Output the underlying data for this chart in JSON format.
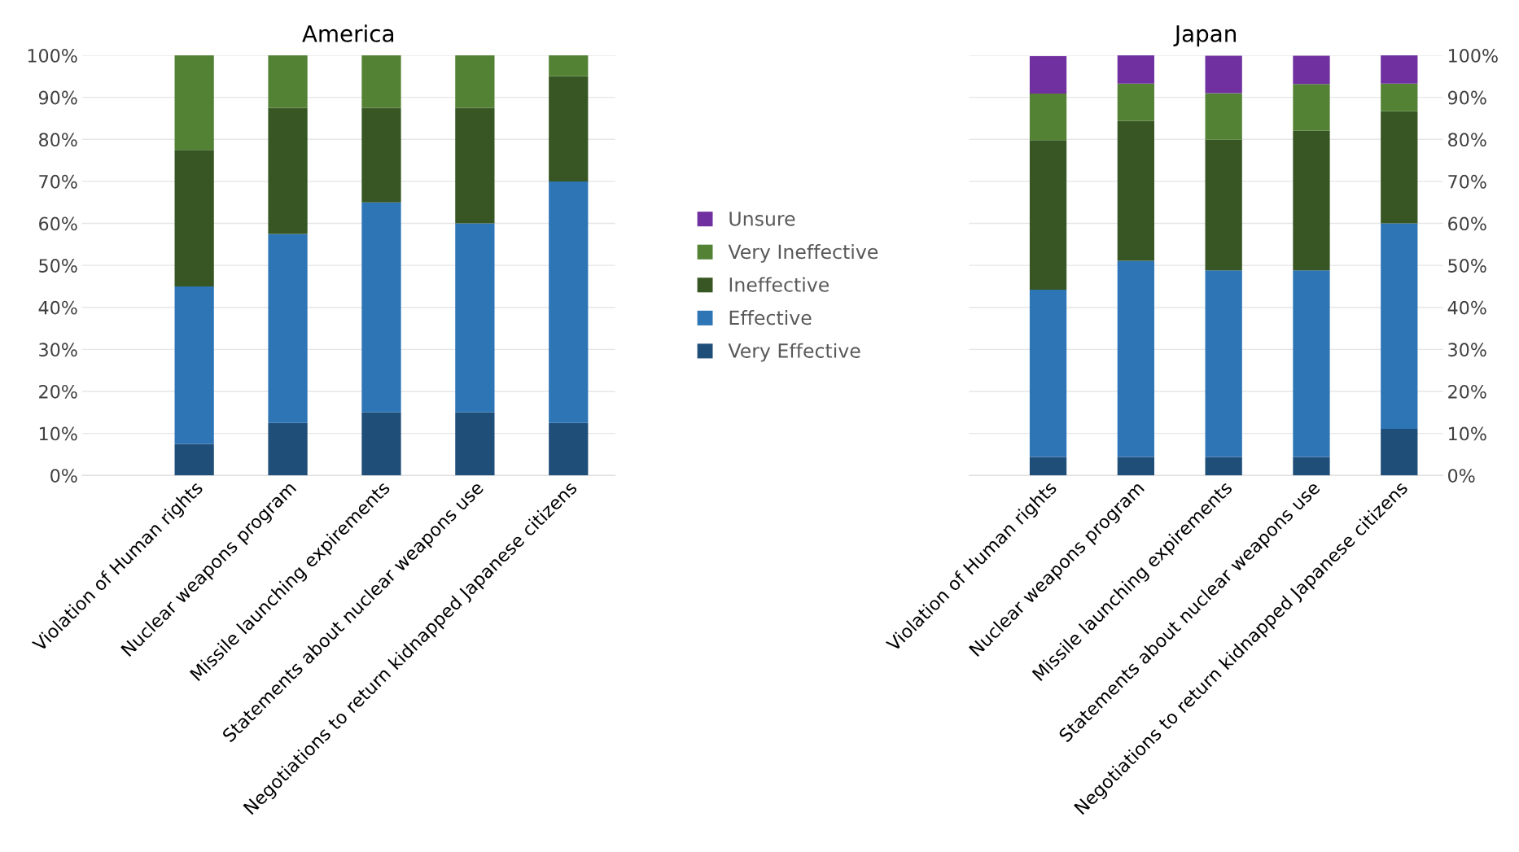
{
  "chart_data": [
    {
      "type": "bar",
      "title": "America",
      "stacked": true,
      "categories": [
        "Violation of Human rights",
        "Nuclear weapons program",
        "Missile launching expirements",
        "Statements about nuclear weapons use",
        "Negotiations to return kidnapped Japanese citizens"
      ],
      "series": [
        {
          "color": "#1f4e79",
          "values": [
            7.5,
            12.5,
            15,
            15,
            12.5
          ]
        },
        {
          "color": "#2e75b6",
          "values": [
            37.5,
            45,
            50,
            45,
            57.5
          ]
        },
        {
          "color": "#375623",
          "values": [
            32.5,
            30,
            22.5,
            27.5,
            25
          ]
        },
        {
          "color": "#548235",
          "values": [
            22.5,
            12.5,
            12.5,
            12.5,
            5
          ]
        }
      ],
      "ylim": [
        0,
        100
      ],
      "yticks": [
        {
          "value": 0,
          "label": "0%"
        },
        {
          "value": 10,
          "label": "10%"
        },
        {
          "value": 20,
          "label": "20%"
        },
        {
          "value": 30,
          "label": "30%"
        },
        {
          "value": 40,
          "label": "40%"
        },
        {
          "value": 50,
          "label": "50%"
        },
        {
          "value": 60,
          "label": "60%"
        },
        {
          "value": 70,
          "label": "70%"
        },
        {
          "value": 80,
          "label": "80%"
        },
        {
          "value": 90,
          "label": "90%"
        },
        {
          "value": 100,
          "label": "100%"
        }
      ],
      "grid": "y"
    },
    {
      "type": "bar",
      "title": "Japan",
      "stacked": true,
      "categories": [
        "Violation of Human rights",
        "Nuclear weapons program",
        "Missile launching expirements",
        "Statements about nuclear weapons use",
        "Negotiations to return kidnapped Japanese citizens"
      ],
      "series": [
        {
          "name": "Very Effective",
          "color": "#1f4e79",
          "values": [
            4.4,
            4.4,
            4.4,
            4.4,
            11.1
          ]
        },
        {
          "name": "Effective",
          "color": "#2e75b6",
          "values": [
            39.8,
            46.7,
            44.4,
            44.4,
            48.9
          ]
        },
        {
          "name": "Ineffective",
          "color": "#375623",
          "values": [
            35.6,
            33.3,
            31.1,
            33.3,
            26.7
          ]
        },
        {
          "name": "Very Ineffective",
          "color": "#548235",
          "values": [
            11.1,
            8.9,
            11.1,
            11.1,
            6.6
          ]
        },
        {
          "name": "Unsure",
          "color": "#7030a0",
          "values": [
            8.9,
            6.7,
            8.9,
            6.7,
            6.7
          ]
        }
      ],
      "ylim": [
        0,
        100
      ],
      "yticks": [
        {
          "value": 0,
          "label": "0%"
        },
        {
          "value": 10,
          "label": "10%"
        },
        {
          "value": 20,
          "label": "20%"
        },
        {
          "value": 30,
          "label": "30%"
        },
        {
          "value": 40,
          "label": "40%"
        },
        {
          "value": 50,
          "label": "50%"
        },
        {
          "value": 60,
          "label": "60%"
        },
        {
          "value": 70,
          "label": "70%"
        },
        {
          "value": 80,
          "label": "80%"
        },
        {
          "value": 90,
          "label": "90%"
        },
        {
          "value": 100,
          "label": "100%"
        }
      ],
      "grid": "y",
      "legend": "left"
    }
  ]
}
